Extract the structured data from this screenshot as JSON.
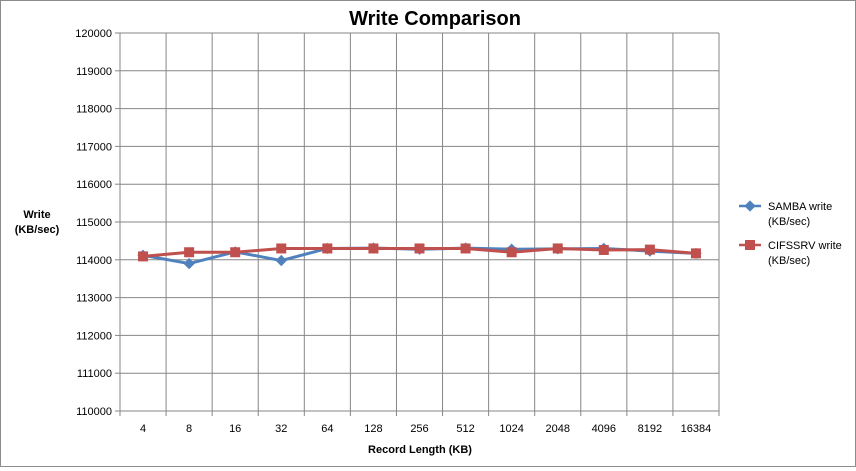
{
  "chart_data": {
    "type": "line",
    "title": "Write Comparison",
    "xlabel": "Record Length (KB)",
    "ylabel_line1": "Write",
    "ylabel_line2": "(KB/sec)",
    "categories": [
      "4",
      "8",
      "16",
      "32",
      "64",
      "128",
      "256",
      "512",
      "1024",
      "2048",
      "4096",
      "8192",
      "16384"
    ],
    "ylim": [
      110000,
      120000
    ],
    "ytick_step": 1000,
    "grid": true,
    "legend_position": "right",
    "series": [
      {
        "name_line1": "SAMBA write",
        "name_line2": "(KB/sec)",
        "color": "#4f81bd",
        "marker": "diamond",
        "values": [
          114120,
          113900,
          114210,
          113980,
          114300,
          114310,
          114280,
          114310,
          114280,
          114290,
          114300,
          114230,
          114170
        ]
      },
      {
        "name_line1": "CIFSSRV write",
        "name_line2": "(KB/sec)",
        "color": "#c0504d",
        "marker": "square",
        "values": [
          114090,
          114200,
          114200,
          114300,
          114300,
          114300,
          114300,
          114300,
          114200,
          114300,
          114260,
          114270,
          114170
        ]
      }
    ]
  }
}
